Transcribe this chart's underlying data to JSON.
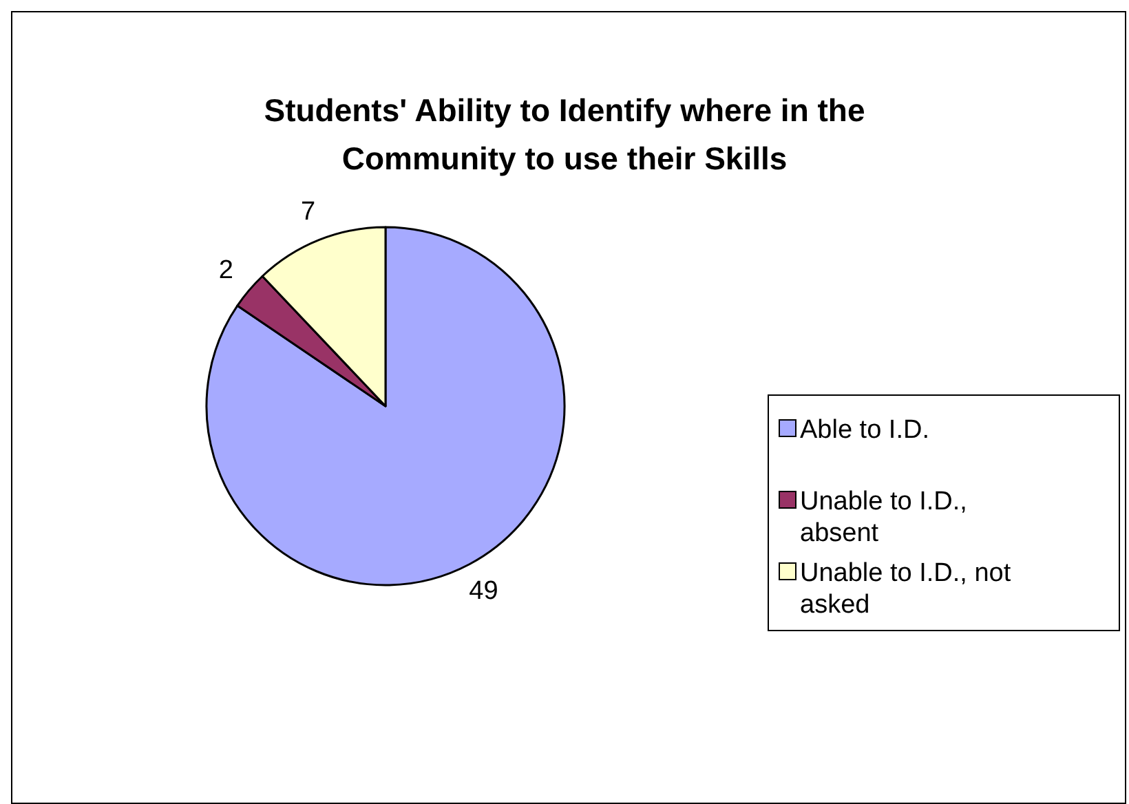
{
  "chart_data": {
    "type": "pie",
    "title": "Students' Ability to Identify where in the Community to use their Skills",
    "categories": [
      "Able to I.D.",
      "Unable to I.D., absent",
      "Unable to I.D., not asked"
    ],
    "values": [
      49,
      2,
      7
    ],
    "colors": [
      "#a6aaff",
      "#993366",
      "#ffffcc"
    ],
    "data_labels": true,
    "legend": "right"
  }
}
